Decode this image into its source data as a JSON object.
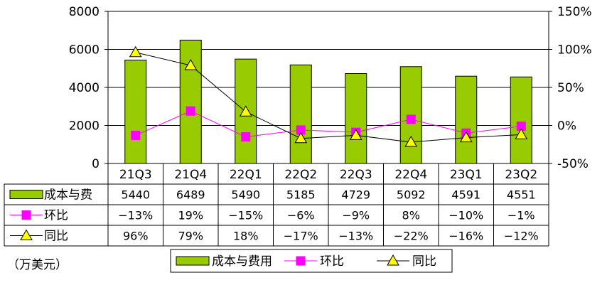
{
  "chart_data": {
    "type": "bar",
    "categories": [
      "21Q3",
      "21Q4",
      "22Q1",
      "22Q2",
      "22Q3",
      "22Q4",
      "23Q1",
      "23Q2"
    ],
    "series": [
      {
        "name": "成本与费用",
        "kind": "bar",
        "axis": "left",
        "color": "#99cc00",
        "values": [
          5440,
          6489,
          5490,
          5185,
          4729,
          5092,
          4591,
          4551
        ]
      },
      {
        "name": "环比",
        "kind": "line",
        "axis": "right",
        "color": "#ff00ff",
        "marker": "square",
        "values": [
          -13,
          19,
          -15,
          -6,
          -9,
          8,
          -10,
          -1
        ]
      },
      {
        "name": "同比",
        "kind": "line",
        "axis": "right",
        "color": "#ffff00",
        "marker": "triangle",
        "values": [
          96,
          79,
          18,
          -17,
          -13,
          -22,
          -16,
          -12
        ]
      }
    ],
    "y_left": {
      "min": 0,
      "max": 8000,
      "ticks": [
        "0",
        "2000",
        "4000",
        "6000",
        "8000"
      ]
    },
    "y_right": {
      "min": -50,
      "max": 150,
      "ticks": [
        "-50%",
        "0%",
        "50%",
        "100%",
        "150%"
      ]
    },
    "grid": true,
    "data_table": {
      "row_labels": [
        "成本与费",
        "环比",
        "同比"
      ],
      "rows": [
        [
          "5440",
          "6489",
          "5490",
          "5185",
          "4729",
          "5092",
          "4591",
          "4551"
        ],
        [
          "−13%",
          "19%",
          "−15%",
          "−6%",
          "−9%",
          "8%",
          "−10%",
          "−1%"
        ],
        [
          "96%",
          "79%",
          "18%",
          "−17%",
          "−13%",
          "−22%",
          "−16%",
          "−12%"
        ]
      ]
    },
    "legend": {
      "position": "bottom",
      "items": [
        "成本与费用",
        "环比",
        "同比"
      ]
    },
    "unit_label": "（万美元）"
  }
}
